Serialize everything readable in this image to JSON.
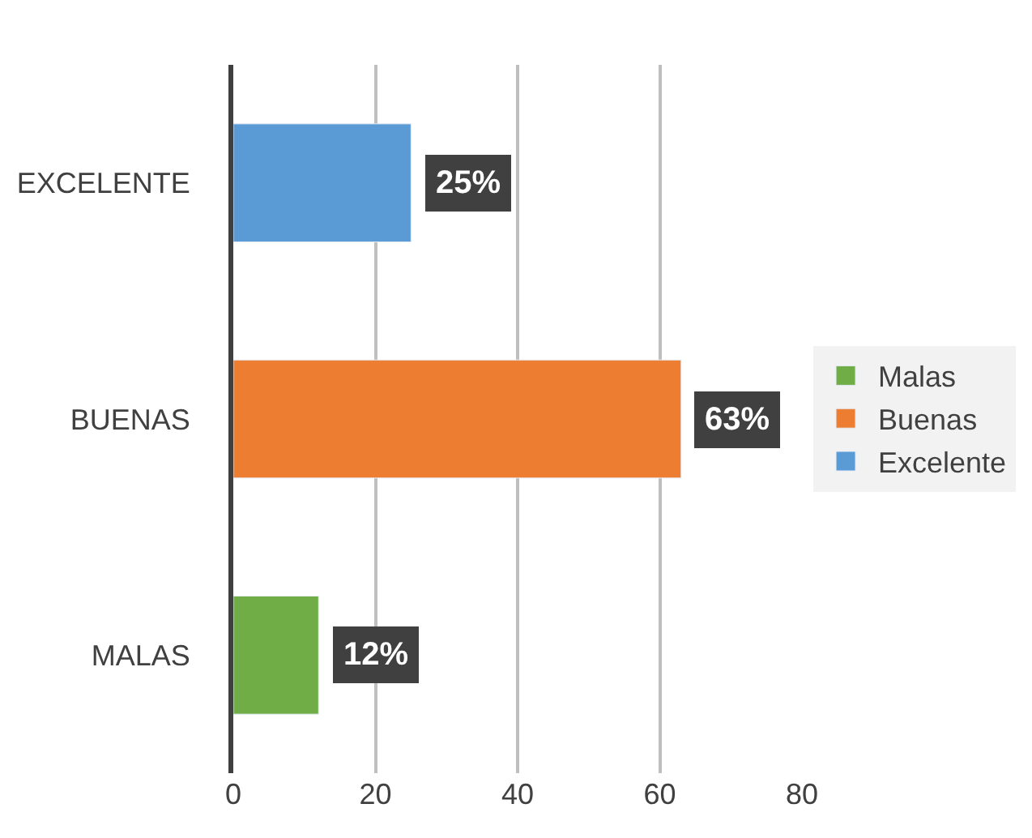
{
  "chart_data": {
    "type": "bar",
    "orientation": "horizontal",
    "categories": [
      "EXCELENTE",
      "BUENAS",
      "MALAS"
    ],
    "series": [
      {
        "name": "Malas",
        "color": "#70ad47",
        "values": [
          null,
          null,
          12
        ],
        "value_labels": [
          null,
          null,
          "12%"
        ]
      },
      {
        "name": "Buenas",
        "color": "#ed7d31",
        "values": [
          null,
          63,
          null
        ],
        "value_labels": [
          null,
          "63%",
          null
        ]
      },
      {
        "name": "Excelente",
        "color": "#5b9bd5",
        "values": [
          25,
          null,
          null
        ],
        "value_labels": [
          "25%",
          null,
          null
        ]
      }
    ],
    "xlim": [
      0,
      80
    ],
    "xticks": [
      0,
      20,
      40,
      60,
      80
    ],
    "grid": "x",
    "legend": "right"
  }
}
